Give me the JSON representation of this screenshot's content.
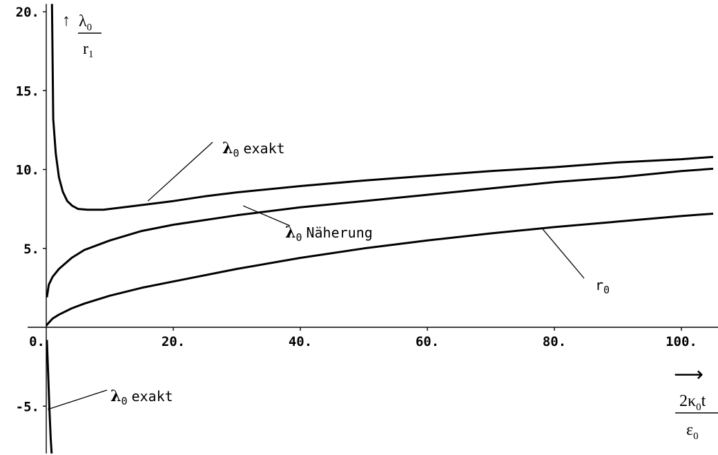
{
  "chart_data": {
    "type": "line",
    "xlim": [
      0,
      106
    ],
    "ylim": [
      -8,
      20.5
    ],
    "x_ticks": [
      0,
      20,
      40,
      60,
      80,
      100
    ],
    "x_tick_labels": [
      "0.",
      "20.",
      "40.",
      "60.",
      "80.",
      "100."
    ],
    "y_ticks": [
      -5,
      5,
      10,
      15,
      20
    ],
    "y_tick_labels": [
      "-5.",
      "5.",
      "10.",
      "15.",
      "20."
    ],
    "y_axis_label": {
      "numerator": "λ",
      "numerator_sub": "0",
      "denominator": "r",
      "denominator_sub": "1",
      "arrow": "↑"
    },
    "x_axis_label": {
      "arrow": "⟶",
      "numerator": "2κ",
      "numerator_sub": "0",
      "numerator_tail": "t",
      "denominator": "ε",
      "denominator_sub": "0"
    },
    "grid": false,
    "series": [
      {
        "name": "λ0 exakt",
        "values": [
          [
            0.9,
            20.5
          ],
          [
            1.1,
            13.2
          ],
          [
            1.5,
            11.0
          ],
          [
            2.0,
            9.5
          ],
          [
            2.6,
            8.6
          ],
          [
            3.3,
            8.0
          ],
          [
            4.1,
            7.7
          ],
          [
            5.0,
            7.5
          ],
          [
            6.5,
            7.45
          ],
          [
            9.0,
            7.45
          ],
          [
            14,
            7.7
          ],
          [
            20,
            8.0
          ],
          [
            25,
            8.3
          ],
          [
            30,
            8.55
          ],
          [
            40,
            8.95
          ],
          [
            50,
            9.3
          ],
          [
            60,
            9.6
          ],
          [
            70,
            9.9
          ],
          [
            80,
            10.15
          ],
          [
            90,
            10.45
          ],
          [
            100,
            10.65
          ],
          [
            105,
            10.8
          ]
        ]
      },
      {
        "name": "λ0 exakt",
        "values": [
          [
            0.1,
            -0.8
          ],
          [
            0.3,
            -3.0
          ],
          [
            0.5,
            -5.2
          ],
          [
            0.7,
            -7.0
          ],
          [
            0.85,
            -8.0
          ]
        ]
      },
      {
        "name": "λ0 Näherung",
        "values": [
          [
            0.1,
            1.9
          ],
          [
            0.4,
            2.7
          ],
          [
            1,
            3.2
          ],
          [
            2,
            3.7
          ],
          [
            4,
            4.4
          ],
          [
            6,
            4.9
          ],
          [
            10,
            5.5
          ],
          [
            15,
            6.1
          ],
          [
            20,
            6.5
          ],
          [
            30,
            7.1
          ],
          [
            40,
            7.6
          ],
          [
            50,
            8.0
          ],
          [
            60,
            8.4
          ],
          [
            70,
            8.8
          ],
          [
            80,
            9.2
          ],
          [
            90,
            9.5
          ],
          [
            100,
            9.9
          ],
          [
            105,
            10.05
          ]
        ]
      },
      {
        "name": "r0",
        "values": [
          [
            0,
            0.1
          ],
          [
            0.3,
            0.25
          ],
          [
            1,
            0.55
          ],
          [
            2,
            0.8
          ],
          [
            4,
            1.2
          ],
          [
            6,
            1.5
          ],
          [
            10,
            2.0
          ],
          [
            15,
            2.5
          ],
          [
            20,
            2.9
          ],
          [
            30,
            3.7
          ],
          [
            40,
            4.4
          ],
          [
            50,
            5.0
          ],
          [
            60,
            5.5
          ],
          [
            70,
            5.95
          ],
          [
            80,
            6.35
          ],
          [
            90,
            6.7
          ],
          [
            100,
            7.05
          ],
          [
            105,
            7.2
          ]
        ]
      }
    ],
    "annotations": [
      {
        "symbol": "λ",
        "sub": "0",
        "text": "exakt",
        "target": [
          16,
          8.0
        ]
      },
      {
        "symbol": "λ",
        "sub": "0",
        "text": "Näherung",
        "target": [
          31,
          7.7
        ]
      },
      {
        "symbol": "r",
        "sub": "0",
        "text": "",
        "target": [
          78,
          6.3
        ]
      },
      {
        "symbol": "λ",
        "sub": "0",
        "text": "exakt",
        "target": [
          0.25,
          -5.2
        ]
      }
    ]
  }
}
